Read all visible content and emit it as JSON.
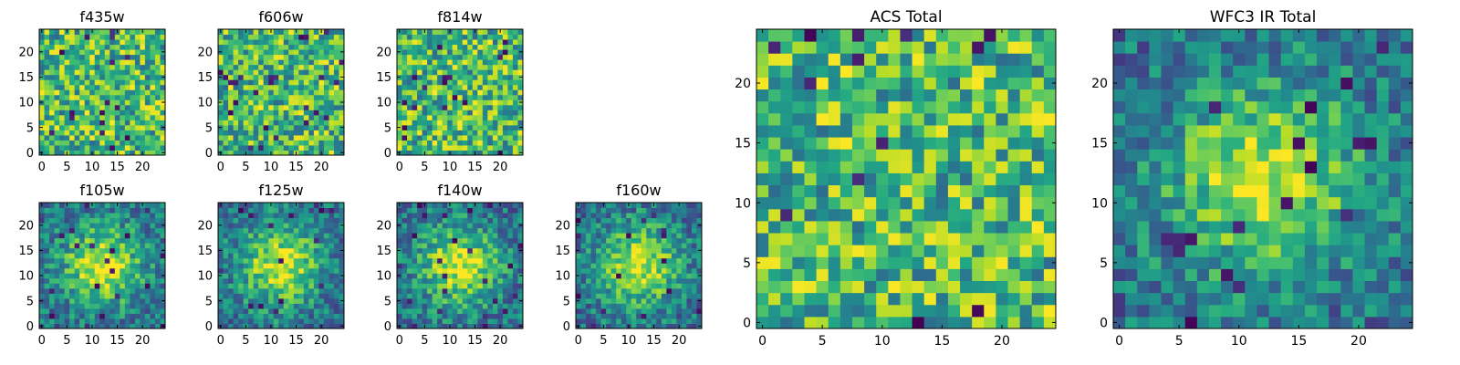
{
  "chart_data": [
    {
      "type": "heatmap",
      "title": "f435w",
      "grid_size": 25,
      "xticks": [
        0,
        5,
        10,
        15,
        20
      ],
      "yticks": [
        0,
        5,
        10,
        15,
        20
      ],
      "xlim": [
        -0.5,
        24.5
      ],
      "ylim": [
        -0.5,
        24.5
      ],
      "colormap": "viridis",
      "pattern": "noise",
      "seed": 11
    },
    {
      "type": "heatmap",
      "title": "f606w",
      "grid_size": 25,
      "xticks": [
        0,
        5,
        10,
        15,
        20
      ],
      "yticks": [
        0,
        5,
        10,
        15,
        20
      ],
      "xlim": [
        -0.5,
        24.5
      ],
      "ylim": [
        -0.5,
        24.5
      ],
      "colormap": "viridis",
      "pattern": "noise",
      "seed": 23
    },
    {
      "type": "heatmap",
      "title": "f814w",
      "grid_size": 25,
      "xticks": [
        0,
        5,
        10,
        15,
        20
      ],
      "yticks": [
        0,
        5,
        10,
        15,
        20
      ],
      "xlim": [
        -0.5,
        24.5
      ],
      "ylim": [
        -0.5,
        24.5
      ],
      "colormap": "viridis",
      "pattern": "noise",
      "seed": 37
    },
    {
      "type": "heatmap",
      "title": "f105w",
      "grid_size": 25,
      "xticks": [
        0,
        5,
        10,
        15,
        20
      ],
      "yticks": [
        0,
        5,
        10,
        15,
        20
      ],
      "xlim": [
        -0.5,
        24.5
      ],
      "ylim": [
        -0.5,
        24.5
      ],
      "colormap": "viridis",
      "pattern": "source",
      "source_center": [
        12,
        12
      ],
      "seed": 41
    },
    {
      "type": "heatmap",
      "title": "f125w",
      "grid_size": 25,
      "xticks": [
        0,
        5,
        10,
        15,
        20
      ],
      "yticks": [
        0,
        5,
        10,
        15,
        20
      ],
      "xlim": [
        -0.5,
        24.5
      ],
      "ylim": [
        -0.5,
        24.5
      ],
      "colormap": "viridis",
      "pattern": "source",
      "source_center": [
        12,
        12
      ],
      "seed": 53
    },
    {
      "type": "heatmap",
      "title": "f140w",
      "grid_size": 25,
      "xticks": [
        0,
        5,
        10,
        15,
        20
      ],
      "yticks": [
        0,
        5,
        10,
        15,
        20
      ],
      "xlim": [
        -0.5,
        24.5
      ],
      "ylim": [
        -0.5,
        24.5
      ],
      "colormap": "viridis",
      "pattern": "source",
      "source_center": [
        12,
        12
      ],
      "seed": 67
    },
    {
      "type": "heatmap",
      "title": "f160w",
      "grid_size": 25,
      "xticks": [
        0,
        5,
        10,
        15,
        20
      ],
      "yticks": [
        0,
        5,
        10,
        15,
        20
      ],
      "xlim": [
        -0.5,
        24.5
      ],
      "ylim": [
        -0.5,
        24.5
      ],
      "colormap": "viridis",
      "pattern": "source",
      "source_center": [
        12,
        12
      ],
      "seed": 79
    },
    {
      "type": "heatmap",
      "title": "ACS Total",
      "grid_size": 25,
      "xticks": [
        0,
        5,
        10,
        15,
        20
      ],
      "yticks": [
        0,
        5,
        10,
        15,
        20
      ],
      "xlim": [
        -0.5,
        24.5
      ],
      "ylim": [
        -0.5,
        24.5
      ],
      "colormap": "viridis",
      "pattern": "noise",
      "seed": 97
    },
    {
      "type": "heatmap",
      "title": "WFC3 IR Total",
      "grid_size": 25,
      "xticks": [
        0,
        5,
        10,
        15,
        20
      ],
      "yticks": [
        0,
        5,
        10,
        15,
        20
      ],
      "xlim": [
        -0.5,
        24.5
      ],
      "ylim": [
        -0.5,
        24.5
      ],
      "colormap": "viridis",
      "pattern": "source",
      "source_center": [
        12,
        12
      ],
      "seed": 101
    }
  ]
}
